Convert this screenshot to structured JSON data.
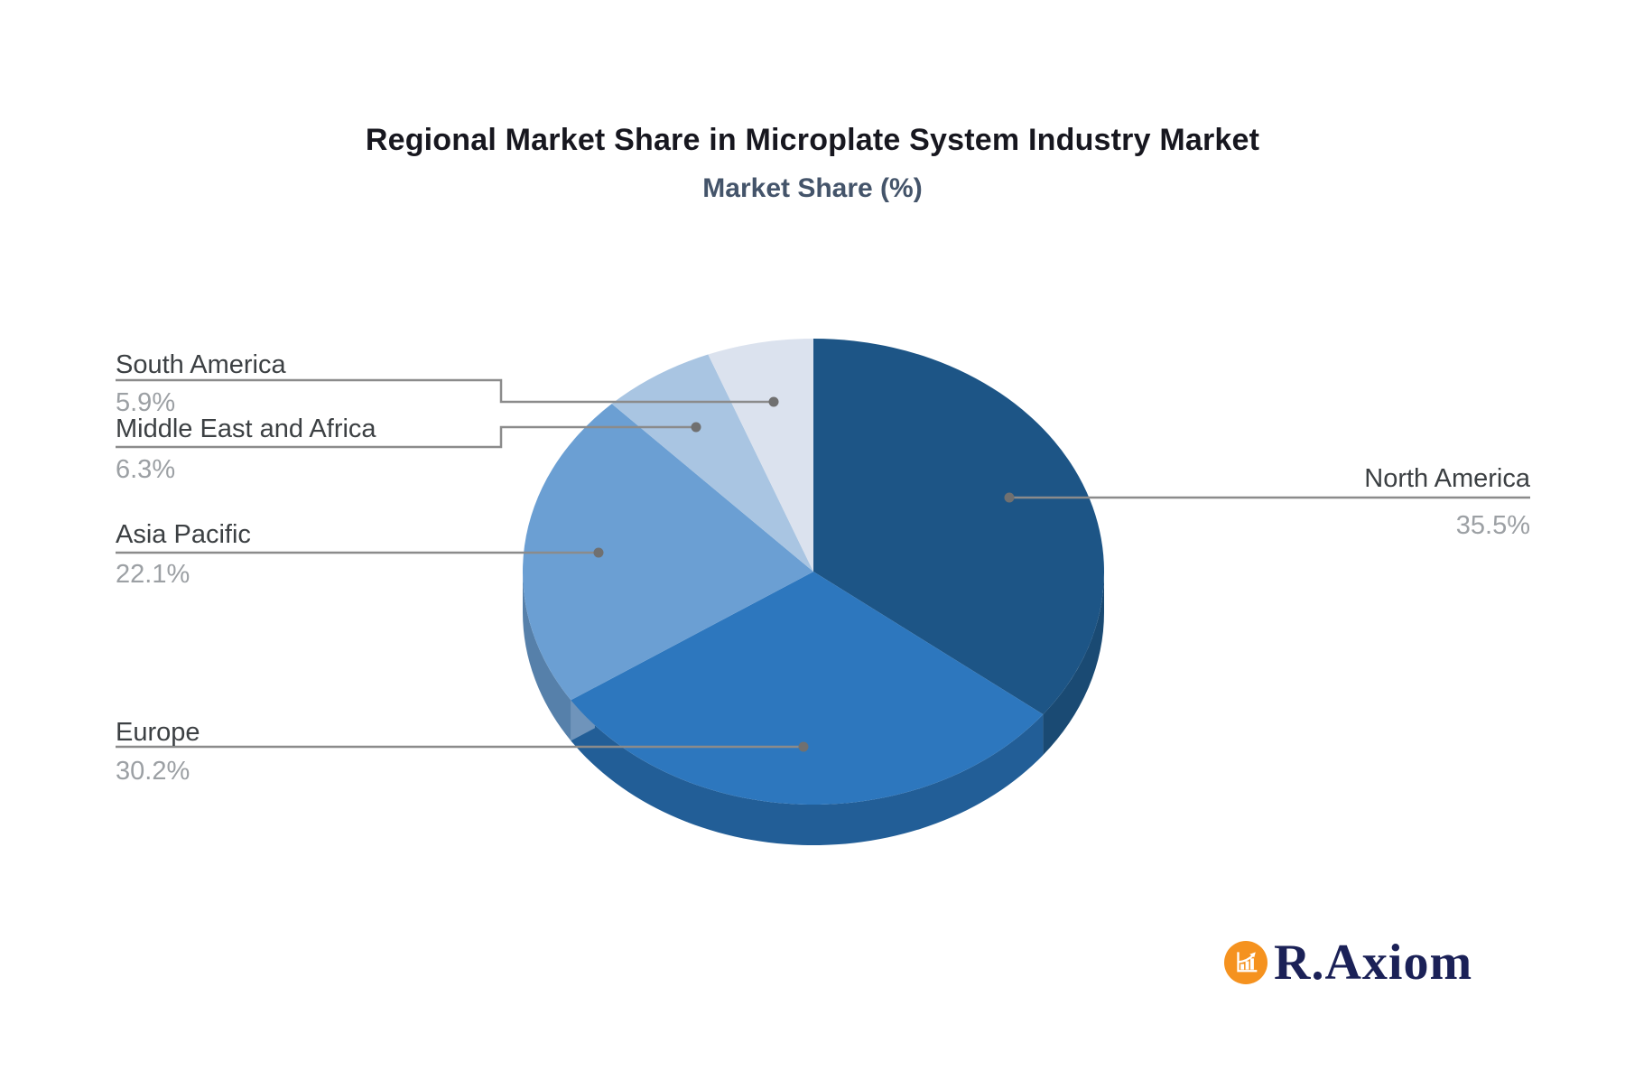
{
  "title": "Regional Market Share in Microplate System Industry Market",
  "subtitle": "Market Share (%)",
  "chart_data": {
    "type": "pie",
    "style": "3d",
    "title": "Regional Market Share in Microplate System Industry Market",
    "subtitle": "Market Share (%)",
    "unit": "%",
    "direction": "clockwise",
    "start_angle_deg": 0,
    "labels": [
      "North America",
      "Europe",
      "Asia Pacific",
      "Middle East and Africa",
      "South America"
    ],
    "values": [
      35.5,
      30.2,
      22.1,
      6.3,
      5.9
    ],
    "display_values": [
      "35.5%",
      "30.2%",
      "22.1%",
      "6.3%",
      "5.9%"
    ],
    "colors": [
      "#1D5586",
      "#2D77BE",
      "#6B9FD3",
      "#A9C5E2",
      "#DBE2EE"
    ],
    "wall_colors": [
      "#1A4A73",
      "#225E97",
      "#5680AA",
      null,
      null
    ],
    "edge_face_color": "#6F94BB",
    "leader_line_color": "#8B8B8B",
    "leader_dot_color": "#707070",
    "label_color": "#3C4043",
    "value_color": "#9CA0A4"
  },
  "logo": {
    "text": "R.Axiom",
    "icon": "bar-chart-growth-icon",
    "circle_color": "#F5921F",
    "text_color": "#1B2157"
  }
}
